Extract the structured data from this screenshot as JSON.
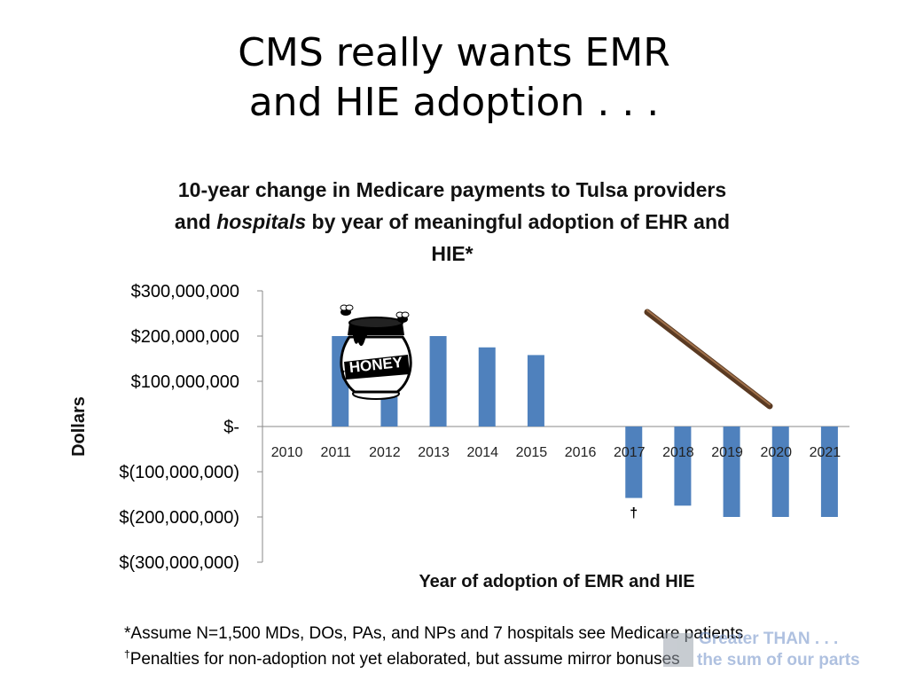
{
  "slide": {
    "title_line1": "CMS really wants EMR",
    "title_line2": "and HIE adoption . . ."
  },
  "chart_data": {
    "type": "bar",
    "title_line1": "10-year change in Medicare payments to Tulsa providers",
    "title_line2_pre": "and ",
    "title_line2_em": "hospitals",
    "title_line2_post": " by year of meaningful adoption of EHR and",
    "title_line3": "HIE*",
    "xlabel": "Year of adoption of EMR and HIE",
    "ylabel": "Dollars",
    "categories": [
      "2010",
      "2011",
      "2012",
      "2013",
      "2014",
      "2015",
      "2016",
      "2017",
      "2018",
      "2019",
      "2020",
      "2021"
    ],
    "values": [
      0,
      200000000,
      65000000,
      200000000,
      175000000,
      158000000,
      0,
      -158000000,
      -175000000,
      -200000000,
      -200000000,
      -200000000
    ],
    "ylim": [
      -300000000,
      300000000
    ],
    "yticks": [
      300000000,
      200000000,
      100000000,
      0,
      -100000000,
      -200000000,
      -300000000
    ],
    "ytick_labels": [
      "$300,000,000",
      "$200,000,000",
      "$100,000,000",
      "$-",
      "$(100,000,000)",
      "$(200,000,000)",
      "$(300,000,000)"
    ],
    "bar_color": "#4f81bd",
    "grid": false,
    "annotations": [
      {
        "text": "†",
        "category": "2017"
      }
    ]
  },
  "decorations": {
    "honey_pot_icon": "honey-pot-icon",
    "honey_label": "HONEY",
    "stick_icon": "stick-icon"
  },
  "footnotes": {
    "line1": "*Assume N=1,500 MDs, DOs, PAs, and NPs and 7 hospitals see Medicare patients",
    "line2_mark": "†",
    "line2_text": "Penalties for non-adoption not yet elaborated, but assume mirror bonuses"
  },
  "watermark": {
    "line1": "Greater THAN . . .",
    "line2": "the sum of our parts"
  }
}
